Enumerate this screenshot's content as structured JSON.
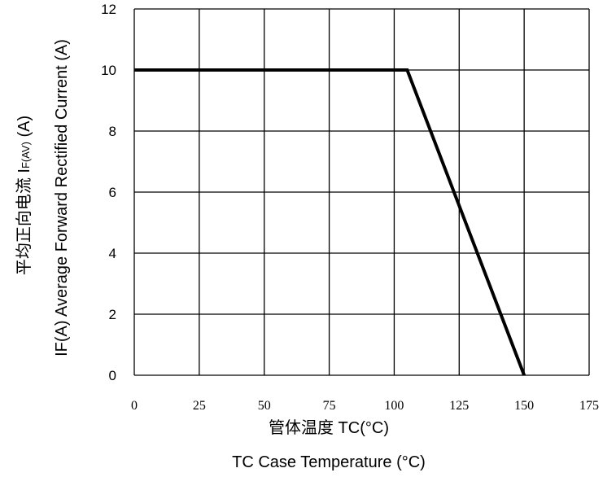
{
  "chart_data": {
    "type": "line",
    "x_ticks": [
      0,
      25,
      50,
      75,
      100,
      125,
      150,
      175
    ],
    "y_ticks": [
      0,
      2,
      4,
      6,
      8,
      10,
      12
    ],
    "xlim": [
      0,
      175
    ],
    "ylim": [
      0,
      12
    ],
    "grid": true,
    "xlabel_cn": "管体温度 TC(°C)",
    "xlabel_en": "TC  Case Temperature (°C)",
    "ylabel_en": "IF(A)  Average Forward Rectified Current (A)",
    "ylabel_cn_prefix": "平均正向电流   I",
    "ylabel_cn_sub": "F(AV)",
    "ylabel_cn_suffix": " (A)",
    "series": [
      {
        "x": [
          0,
          105,
          150
        ],
        "y": [
          10,
          10,
          0
        ]
      }
    ]
  }
}
